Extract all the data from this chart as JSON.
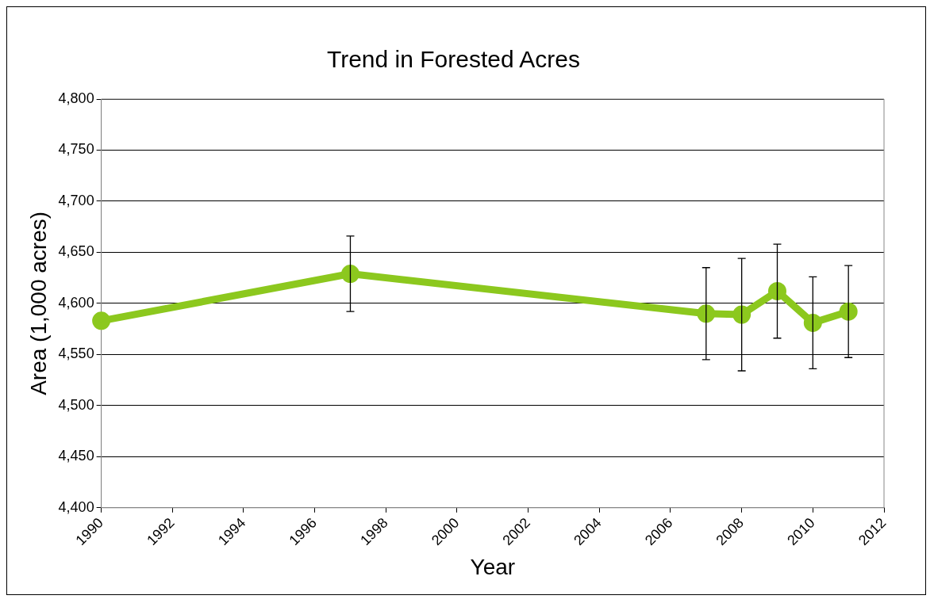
{
  "chart_data": {
    "type": "line",
    "title": "Trend in Forested Acres",
    "xlabel": "Year",
    "ylabel": "Area (1,000 acres)",
    "x": [
      1990,
      1997,
      2007,
      2008,
      2009,
      2010,
      2011
    ],
    "series": [
      {
        "color": "#8cc81e",
        "values": [
          4583,
          4629,
          4590,
          4589,
          4612,
          4581,
          4592
        ],
        "errors": [
          null,
          37,
          45,
          55,
          46,
          45,
          45
        ]
      }
    ],
    "xlim": [
      1990,
      2012
    ],
    "xticks": [
      1990,
      1992,
      1994,
      1996,
      1998,
      2000,
      2002,
      2004,
      2006,
      2008,
      2010,
      2012
    ],
    "ylim": [
      4400,
      4800
    ],
    "yticks": [
      {
        "value": 4400,
        "label": "4,400"
      },
      {
        "value": 4450,
        "label": "4,450"
      },
      {
        "value": 4500,
        "label": "4,500"
      },
      {
        "value": 4550,
        "label": "4,550"
      },
      {
        "value": 4600,
        "label": "4,600"
      },
      {
        "value": 4650,
        "label": "4,650"
      },
      {
        "value": 4700,
        "label": "4,700"
      },
      {
        "value": 4750,
        "label": "4,750"
      },
      {
        "value": 4800,
        "label": "4,800"
      }
    ],
    "grid": "y",
    "legend": false,
    "marker": "circle",
    "line_style": "solid"
  }
}
